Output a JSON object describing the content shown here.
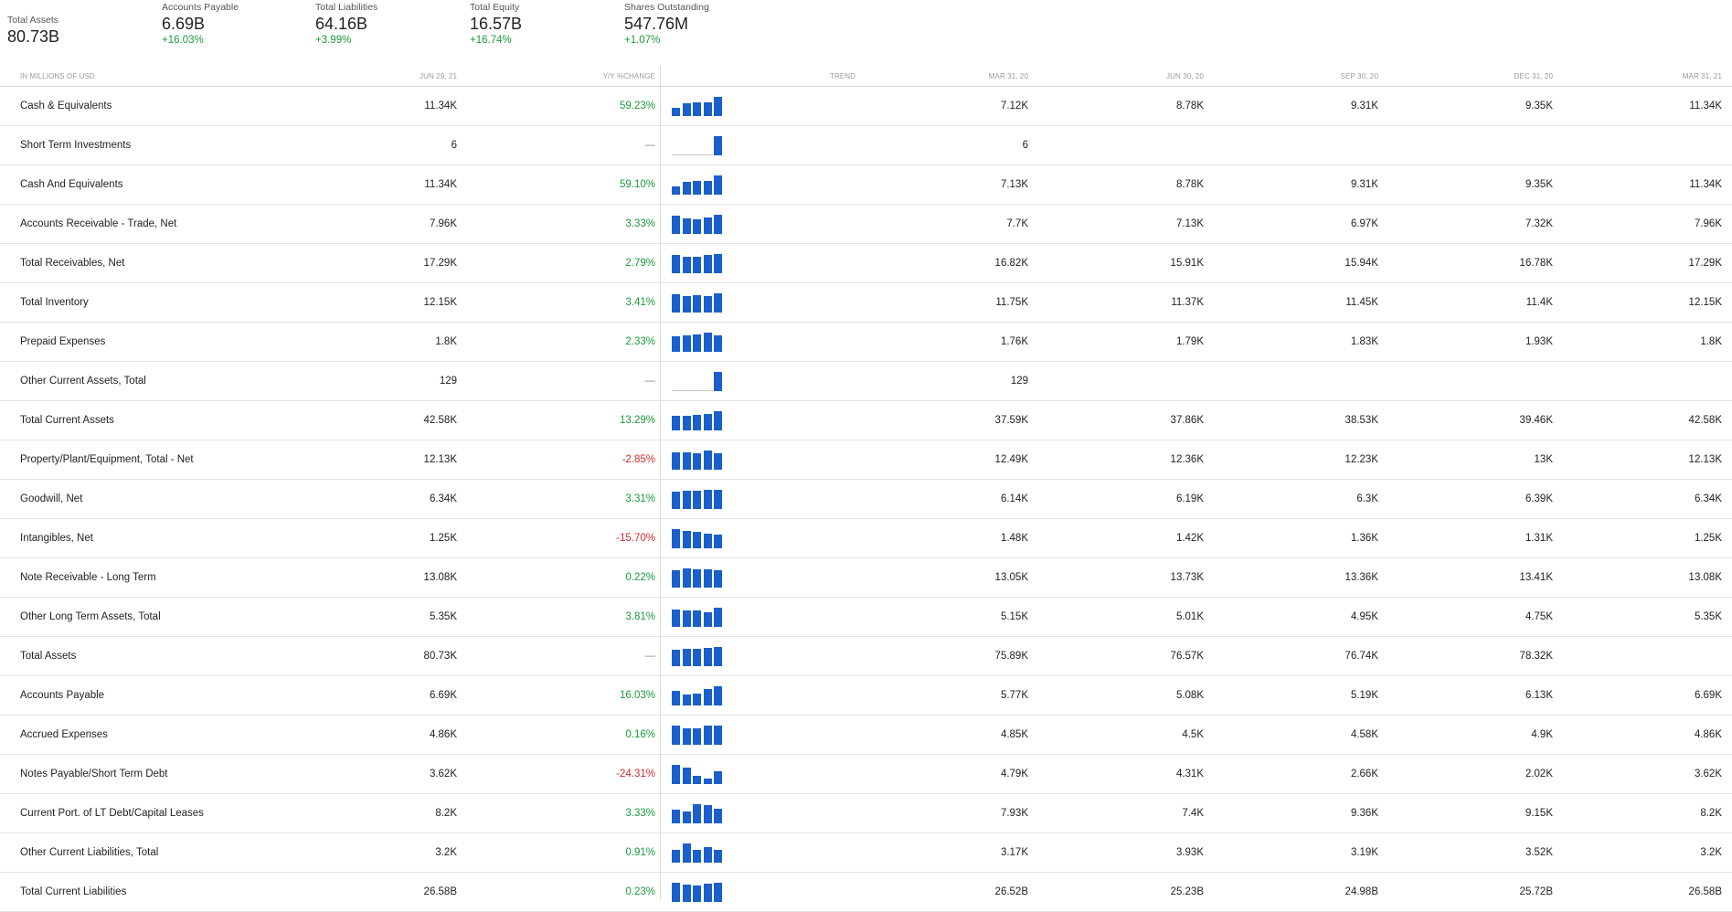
{
  "summary": [
    {
      "label": "Total Assets",
      "value": "80.73B",
      "change": ""
    },
    {
      "label": "Accounts Payable",
      "value": "6.69B",
      "change": "+16.03%"
    },
    {
      "label": "Total Liabilities",
      "value": "64.16B",
      "change": "+3.99%"
    },
    {
      "label": "Total Equity",
      "value": "16.57B",
      "change": "+16.74%"
    },
    {
      "label": "Shares Outstanding",
      "value": "547.76M",
      "change": "+1.07%"
    }
  ],
  "header": {
    "units": "IN MILLIONS OF USD",
    "current": "JUN 29, 21",
    "yoy": "Y/Y %CHANGE",
    "trend": "TREND",
    "periods": [
      "MAR 31, 20",
      "JUN 30, 20",
      "SEP 30, 20",
      "DEC 31, 20",
      "MAR 31, 21"
    ]
  },
  "colors": {
    "bar": "#1a5fcb",
    "positive": "#1a9a3c",
    "negative": "#d12b2b"
  },
  "rows": [
    {
      "name": "Cash & Equivalents",
      "current": "11.34K",
      "change": "59.23%",
      "dir": "pos",
      "trend": [
        7.12,
        8.78,
        9.31,
        9.35,
        11.34
      ],
      "periods": [
        "7.12K",
        "8.78K",
        "9.31K",
        "9.35K",
        "11.34K"
      ]
    },
    {
      "name": "Short Term Investments",
      "current": "6",
      "change": "—",
      "dir": "none",
      "trend": [
        0,
        0,
        0,
        0,
        6
      ],
      "periods": [
        "6",
        "",
        "",
        "",
        ""
      ]
    },
    {
      "name": "Cash And Equivalents",
      "current": "11.34K",
      "change": "59.10%",
      "dir": "pos",
      "trend": [
        7.13,
        8.78,
        9.31,
        9.35,
        11.34
      ],
      "periods": [
        "7.13K",
        "8.78K",
        "9.31K",
        "9.35K",
        "11.34K"
      ]
    },
    {
      "name": "Accounts Receivable - Trade, Net",
      "current": "7.96K",
      "change": "3.33%",
      "dir": "pos",
      "trend": [
        7.7,
        7.13,
        6.97,
        7.32,
        7.96
      ],
      "periods": [
        "7.7K",
        "7.13K",
        "6.97K",
        "7.32K",
        "7.96K"
      ]
    },
    {
      "name": "Total Receivables, Net",
      "current": "17.29K",
      "change": "2.79%",
      "dir": "pos",
      "trend": [
        16.82,
        15.91,
        15.94,
        16.78,
        17.29
      ],
      "periods": [
        "16.82K",
        "15.91K",
        "15.94K",
        "16.78K",
        "17.29K"
      ]
    },
    {
      "name": "Total Inventory",
      "current": "12.15K",
      "change": "3.41%",
      "dir": "pos",
      "trend": [
        11.75,
        11.37,
        11.45,
        11.4,
        12.15
      ],
      "periods": [
        "11.75K",
        "11.37K",
        "11.45K",
        "11.4K",
        "12.15K"
      ]
    },
    {
      "name": "Prepaid Expenses",
      "current": "1.8K",
      "change": "2.33%",
      "dir": "pos",
      "trend": [
        1.76,
        1.79,
        1.83,
        1.93,
        1.8
      ],
      "periods": [
        "1.76K",
        "1.79K",
        "1.83K",
        "1.93K",
        "1.8K"
      ]
    },
    {
      "name": "Other Current Assets, Total",
      "current": "129",
      "change": "—",
      "dir": "none",
      "trend": [
        0,
        0,
        0,
        0,
        129
      ],
      "periods": [
        "129",
        "",
        "",
        "",
        ""
      ]
    },
    {
      "name": "Total Current Assets",
      "current": "42.58K",
      "change": "13.29%",
      "dir": "pos",
      "trend": [
        37.59,
        37.86,
        38.53,
        39.46,
        42.58
      ],
      "periods": [
        "37.59K",
        "37.86K",
        "38.53K",
        "39.46K",
        "42.58K"
      ]
    },
    {
      "name": "Property/Plant/Equipment, Total - Net",
      "current": "12.13K",
      "change": "-2.85%",
      "dir": "neg",
      "trend": [
        12.49,
        12.36,
        12.23,
        13,
        12.13
      ],
      "periods": [
        "12.49K",
        "12.36K",
        "12.23K",
        "13K",
        "12.13K"
      ]
    },
    {
      "name": "Goodwill, Net",
      "current": "6.34K",
      "change": "3.31%",
      "dir": "pos",
      "trend": [
        6.14,
        6.19,
        6.3,
        6.39,
        6.34
      ],
      "periods": [
        "6.14K",
        "6.19K",
        "6.3K",
        "6.39K",
        "6.34K"
      ]
    },
    {
      "name": "Intangibles, Net",
      "current": "1.25K",
      "change": "-15.70%",
      "dir": "neg",
      "trend": [
        1.48,
        1.42,
        1.36,
        1.31,
        1.25
      ],
      "periods": [
        "1.48K",
        "1.42K",
        "1.36K",
        "1.31K",
        "1.25K"
      ]
    },
    {
      "name": "Note Receivable - Long Term",
      "current": "13.08K",
      "change": "0.22%",
      "dir": "pos",
      "trend": [
        13.05,
        13.73,
        13.36,
        13.41,
        13.08
      ],
      "periods": [
        "13.05K",
        "13.73K",
        "13.36K",
        "13.41K",
        "13.08K"
      ]
    },
    {
      "name": "Other Long Term Assets, Total",
      "current": "5.35K",
      "change": "3.81%",
      "dir": "pos",
      "trend": [
        5.15,
        5.01,
        4.95,
        4.75,
        5.35
      ],
      "periods": [
        "5.15K",
        "5.01K",
        "4.95K",
        "4.75K",
        "5.35K"
      ]
    },
    {
      "name": "Total Assets",
      "current": "80.73K",
      "change": "—",
      "dir": "none",
      "trend": [
        75.89,
        76.57,
        76.74,
        78.32,
        80.73
      ],
      "periods": [
        "75.89K",
        "76.57K",
        "76.74K",
        "78.32K",
        ""
      ]
    },
    {
      "name": "Accounts Payable",
      "current": "6.69K",
      "change": "16.03%",
      "dir": "pos",
      "trend": [
        5.77,
        5.08,
        5.19,
        6.13,
        6.69
      ],
      "periods": [
        "5.77K",
        "5.08K",
        "5.19K",
        "6.13K",
        "6.69K"
      ]
    },
    {
      "name": "Accrued Expenses",
      "current": "4.86K",
      "change": "0.16%",
      "dir": "pos",
      "trend": [
        4.85,
        4.5,
        4.58,
        4.9,
        4.86
      ],
      "periods": [
        "4.85K",
        "4.5K",
        "4.58K",
        "4.9K",
        "4.86K"
      ]
    },
    {
      "name": "Notes Payable/Short Term Debt",
      "current": "3.62K",
      "change": "-24.31%",
      "dir": "neg",
      "trend": [
        4.79,
        4.31,
        2.66,
        2.02,
        3.62
      ],
      "periods": [
        "4.79K",
        "4.31K",
        "2.66K",
        "2.02K",
        "3.62K"
      ]
    },
    {
      "name": "Current Port. of LT Debt/Capital Leases",
      "current": "8.2K",
      "change": "3.33%",
      "dir": "pos",
      "trend": [
        7.93,
        7.4,
        9.36,
        9.15,
        8.2
      ],
      "periods": [
        "7.93K",
        "7.4K",
        "9.36K",
        "9.15K",
        "8.2K"
      ]
    },
    {
      "name": "Other Current Liabilities, Total",
      "current": "3.2K",
      "change": "0.91%",
      "dir": "pos",
      "trend": [
        3.17,
        3.93,
        3.19,
        3.52,
        3.2
      ],
      "periods": [
        "3.17K",
        "3.93K",
        "3.19K",
        "3.52K",
        "3.2K"
      ]
    },
    {
      "name": "Total Current Liabilities",
      "current": "26.58B",
      "change": "0.23%",
      "dir": "pos",
      "trend": [
        26.52,
        25.23,
        24.98,
        25.72,
        26.58
      ],
      "periods": [
        "26.52B",
        "25.23B",
        "24.98B",
        "25.72B",
        "26.58B"
      ]
    }
  ]
}
